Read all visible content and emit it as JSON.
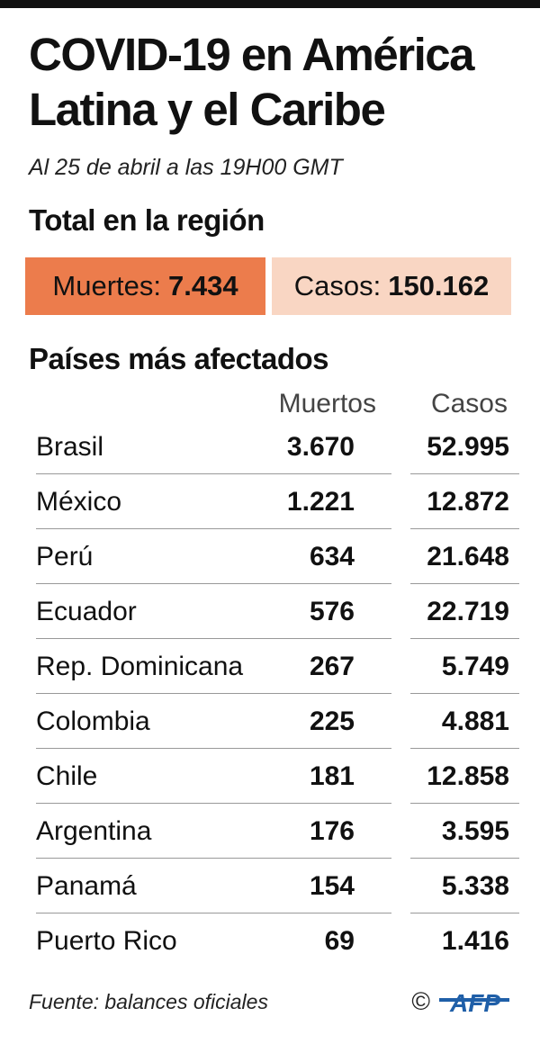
{
  "title_line1": "COVID-19 en América",
  "title_line2": "Latina y el Caribe",
  "subtitle": "Al 25 de abril a las 19H00 GMT",
  "total_section": "Total en la región",
  "totals": {
    "deaths_label": "Muertes:",
    "deaths_value": "7.434",
    "cases_label": "Casos:",
    "cases_value": "150.162"
  },
  "countries_section": "Países más afectados",
  "colors": {
    "deaths_box": "#ec7c4c",
    "cases_box": "#f9d6c3",
    "afp_blue": "#1f5fa8"
  },
  "chart_data": {
    "type": "table",
    "columns": [
      "",
      "Muertos",
      "Casos"
    ],
    "rows": [
      {
        "country": "Brasil",
        "deaths": "3.670",
        "cases": "52.995"
      },
      {
        "country": "México",
        "deaths": "1.221",
        "cases": "12.872"
      },
      {
        "country": "Perú",
        "deaths": "634",
        "cases": "21.648"
      },
      {
        "country": "Ecuador",
        "deaths": "576",
        "cases": "22.719"
      },
      {
        "country": "Rep. Dominicana",
        "deaths": "267",
        "cases": "5.749"
      },
      {
        "country": "Colombia",
        "deaths": "225",
        "cases": "4.881"
      },
      {
        "country": "Chile",
        "deaths": "181",
        "cases": "12.858"
      },
      {
        "country": "Argentina",
        "deaths": "176",
        "cases": "3.595"
      },
      {
        "country": "Panamá",
        "deaths": "154",
        "cases": "5.338"
      },
      {
        "country": "Puerto Rico",
        "deaths": "69",
        "cases": "1.416"
      }
    ]
  },
  "source": "Fuente: balances oficiales",
  "copyright": "©",
  "logo_text": "AFP"
}
